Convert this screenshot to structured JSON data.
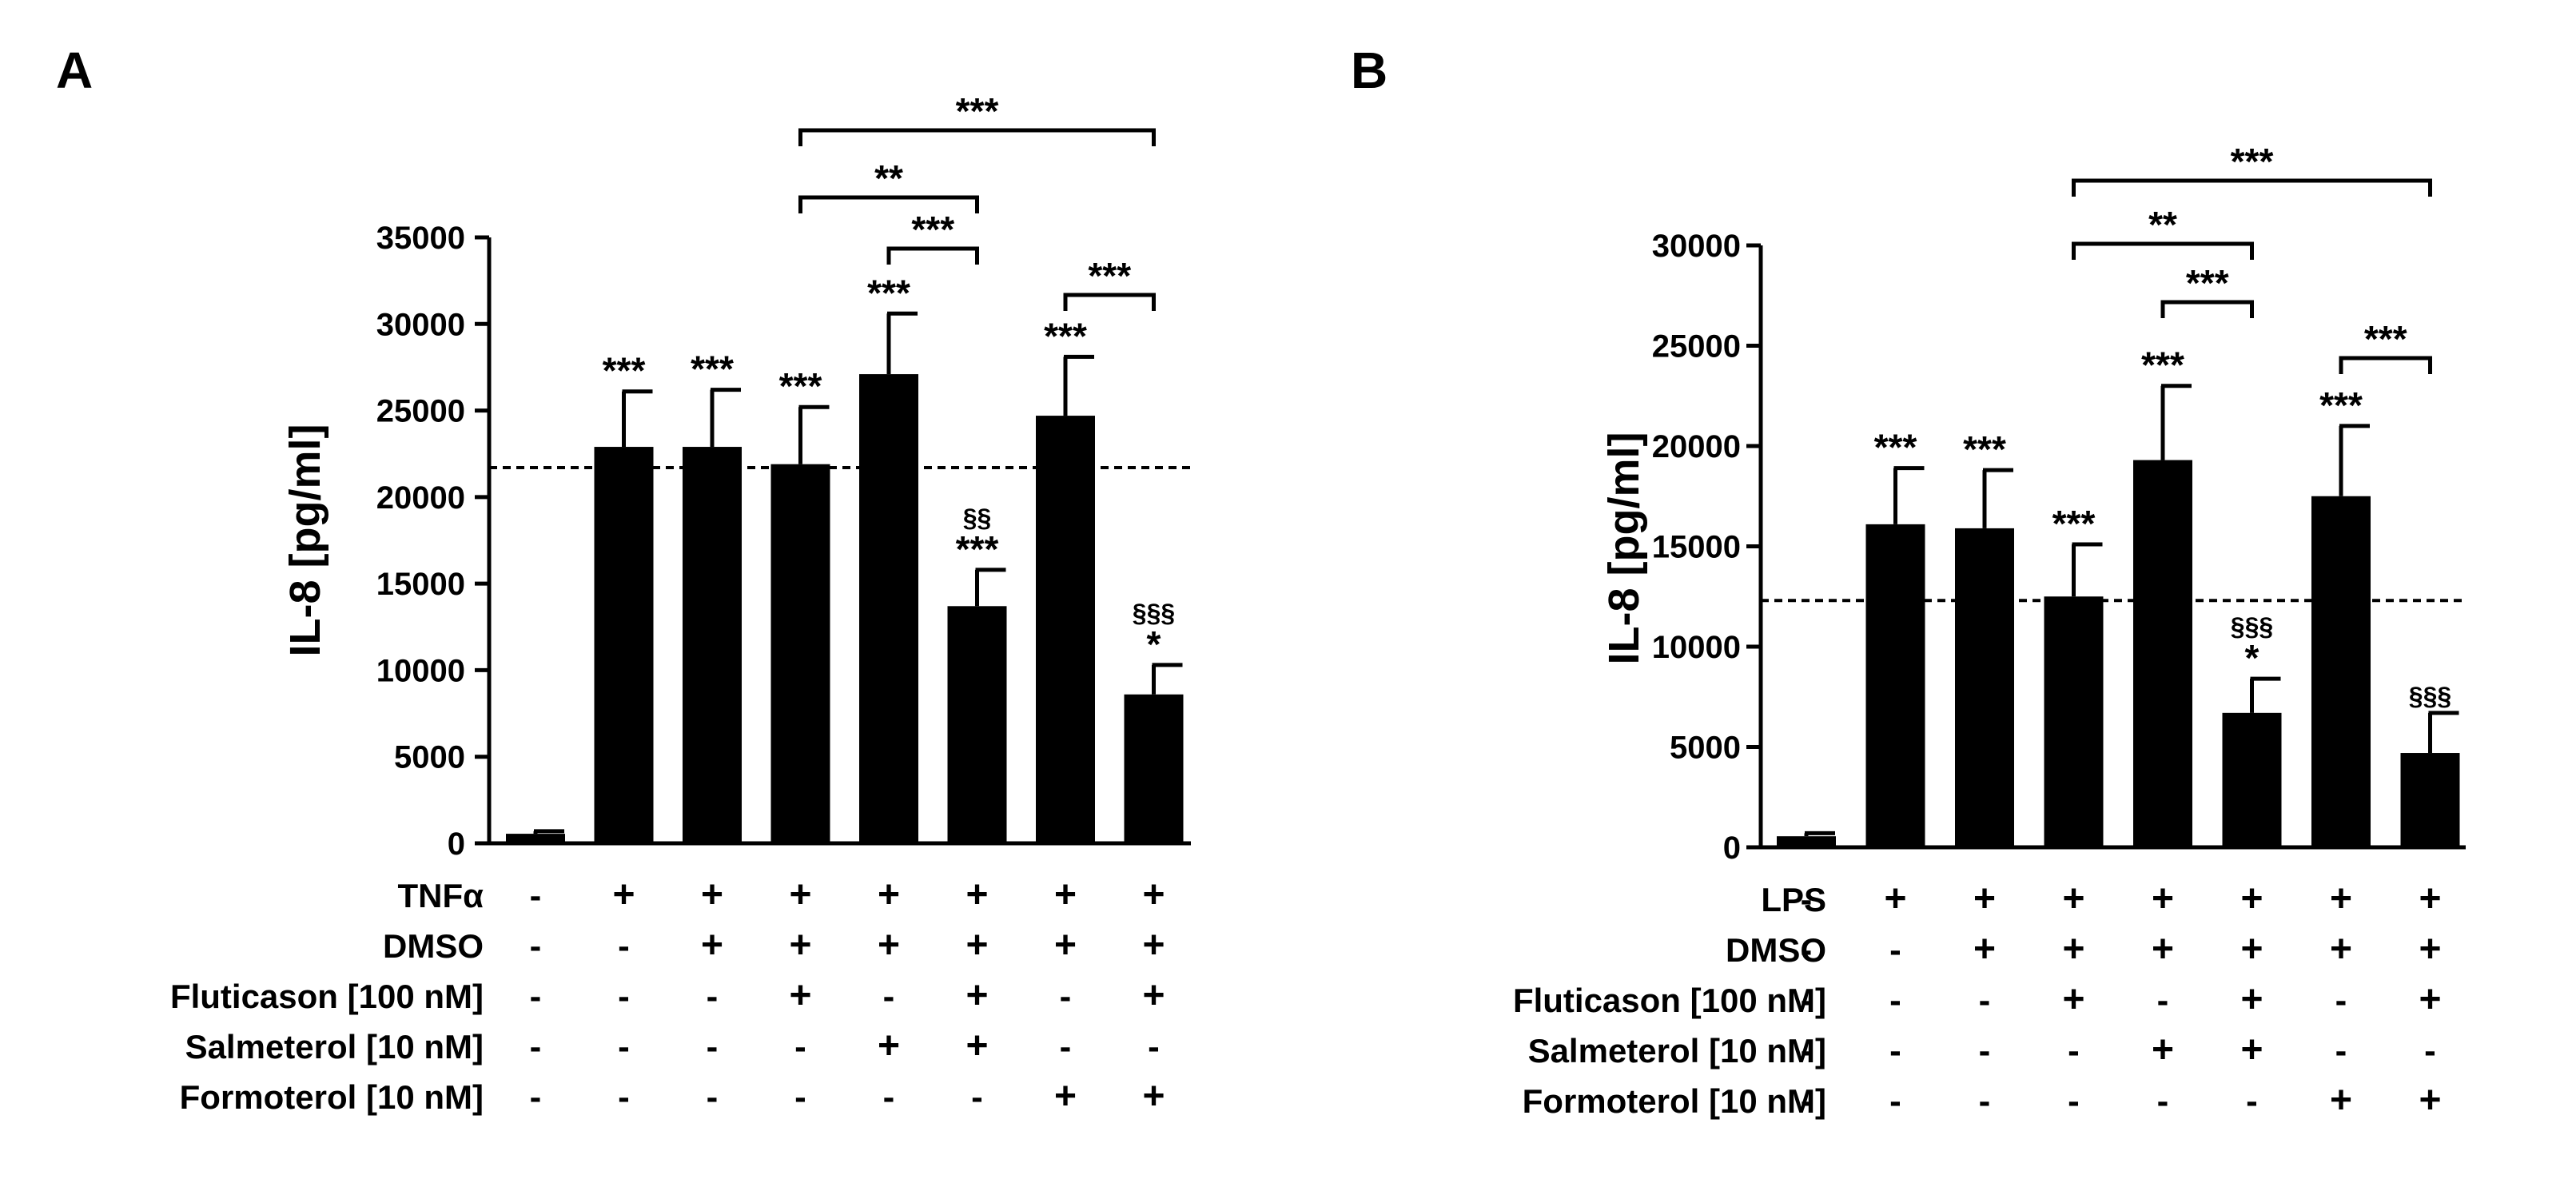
{
  "chart_data": [
    {
      "panel": "A",
      "type": "bar",
      "ylabel": "IL-8 [pg/ml]",
      "ylim": [
        0,
        35000
      ],
      "yticks": [
        0,
        5000,
        10000,
        15000,
        20000,
        25000,
        30000,
        35000
      ],
      "ytick_labels": [
        "0",
        "5000",
        "10000",
        "15000",
        "20000",
        "25000",
        "30000",
        "35000"
      ],
      "values": [
        550,
        22900,
        22900,
        21900,
        27100,
        13700,
        24700,
        8600
      ],
      "errors": [
        150,
        3200,
        3300,
        3300,
        3500,
        2100,
        3400,
        1700
      ],
      "reference_line": 21700,
      "bar_annotations": [
        "",
        "***",
        "***",
        "***",
        "***",
        "§§\n***",
        "***",
        "§§§\n*"
      ],
      "brackets": [
        {
          "from": 3,
          "to": 7,
          "label": "***"
        },
        {
          "from": 3,
          "to": 5,
          "label": "**"
        },
        {
          "from": 4,
          "to": 5,
          "label": "***"
        },
        {
          "from": 6,
          "to": 7,
          "label": "***"
        }
      ],
      "treatment_rows": [
        {
          "label": "TNFα",
          "marks": [
            "-",
            "+",
            "+",
            "+",
            "+",
            "+",
            "+",
            "+"
          ]
        },
        {
          "label": "DMSO",
          "marks": [
            "-",
            "-",
            "+",
            "+",
            "+",
            "+",
            "+",
            "+"
          ]
        },
        {
          "label": "Fluticason [100 nM]",
          "marks": [
            "-",
            "-",
            "-",
            "+",
            "-",
            "+",
            "-",
            "+"
          ]
        },
        {
          "label": "Salmeterol [10 nM]",
          "marks": [
            "-",
            "-",
            "-",
            "-",
            "+",
            "+",
            "-",
            "-"
          ]
        },
        {
          "label": "Formoterol [10 nM]",
          "marks": [
            "-",
            "-",
            "-",
            "-",
            "-",
            "-",
            "+",
            "+"
          ]
        }
      ]
    },
    {
      "panel": "B",
      "type": "bar",
      "ylabel": "IL-8 [pg/ml]",
      "ylim": [
        0,
        30000
      ],
      "yticks": [
        0,
        5000,
        10000,
        15000,
        20000,
        25000,
        30000
      ],
      "ytick_labels": [
        "0",
        "5000",
        "10000",
        "15000",
        "20000",
        "25000",
        "30000"
      ],
      "values": [
        550,
        16100,
        15900,
        12500,
        19300,
        6700,
        17500,
        4700
      ],
      "errors": [
        150,
        2800,
        2900,
        2600,
        3700,
        1700,
        3500,
        2000
      ],
      "reference_line": 12300,
      "bar_annotations": [
        "",
        "***",
        "***",
        "***",
        "***",
        "§§§\n*",
        "***",
        "§§§"
      ],
      "brackets": [
        {
          "from": 3,
          "to": 7,
          "label": "***"
        },
        {
          "from": 3,
          "to": 5,
          "label": "**"
        },
        {
          "from": 4,
          "to": 5,
          "label": "***"
        },
        {
          "from": 6,
          "to": 7,
          "label": "***"
        }
      ],
      "treatment_rows": [
        {
          "label": "LPS",
          "marks": [
            "-",
            "+",
            "+",
            "+",
            "+",
            "+",
            "+",
            "+"
          ]
        },
        {
          "label": "DMSO",
          "marks": [
            "-",
            "-",
            "+",
            "+",
            "+",
            "+",
            "+",
            "+"
          ]
        },
        {
          "label": "Fluticason [100 nM]",
          "marks": [
            "-",
            "-",
            "-",
            "+",
            "-",
            "+",
            "-",
            "+"
          ]
        },
        {
          "label": "Salmeterol [10 nM]",
          "marks": [
            "-",
            "-",
            "-",
            "-",
            "+",
            "+",
            "-",
            "-"
          ]
        },
        {
          "label": "Formoterol [10 nM]",
          "marks": [
            "-",
            "-",
            "-",
            "-",
            "-",
            "-",
            "+",
            "+"
          ]
        }
      ]
    }
  ]
}
